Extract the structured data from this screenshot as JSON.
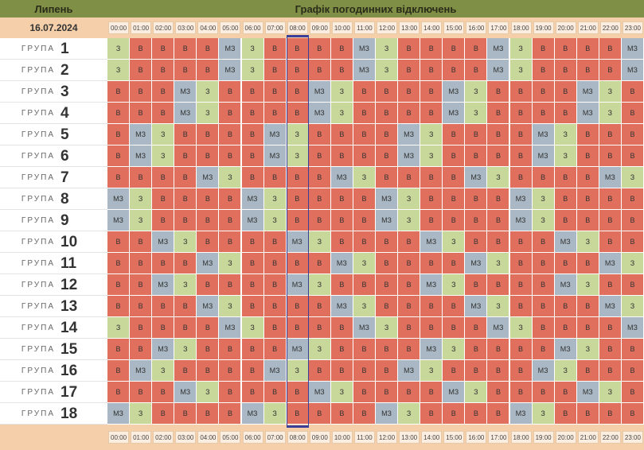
{
  "header": {
    "month": "Липень",
    "title": "Графік погодинних відключень",
    "date": "16.07.2024"
  },
  "hours": [
    "00:00",
    "01:00",
    "02:00",
    "03:00",
    "04:00",
    "05:00",
    "06:00",
    "07:00",
    "08:00",
    "09:00",
    "10:00",
    "11:00",
    "12:00",
    "13:00",
    "14:00",
    "15:00",
    "16:00",
    "17:00",
    "18:00",
    "19:00",
    "20:00",
    "21:00",
    "22:00",
    "23:00"
  ],
  "groups": [
    {
      "label": "ГРУПА",
      "number": "1",
      "cells": [
        "З",
        "В",
        "В",
        "В",
        "В",
        "МЗ",
        "З",
        "В",
        "В",
        "В",
        "В",
        "МЗ",
        "З",
        "В",
        "В",
        "В",
        "В",
        "МЗ",
        "З",
        "В",
        "В",
        "В",
        "В",
        "МЗ"
      ]
    },
    {
      "label": "ГРУПА",
      "number": "2",
      "cells": [
        "З",
        "В",
        "В",
        "В",
        "В",
        "МЗ",
        "З",
        "В",
        "В",
        "В",
        "В",
        "МЗ",
        "З",
        "В",
        "В",
        "В",
        "В",
        "МЗ",
        "З",
        "В",
        "В",
        "В",
        "В",
        "МЗ"
      ]
    },
    {
      "label": "ГРУПА",
      "number": "3",
      "cells": [
        "В",
        "В",
        "В",
        "МЗ",
        "З",
        "В",
        "В",
        "В",
        "В",
        "МЗ",
        "З",
        "В",
        "В",
        "В",
        "В",
        "МЗ",
        "З",
        "В",
        "В",
        "В",
        "В",
        "МЗ",
        "З",
        "В"
      ]
    },
    {
      "label": "ГРУПА",
      "number": "4",
      "cells": [
        "В",
        "В",
        "В",
        "МЗ",
        "З",
        "В",
        "В",
        "В",
        "В",
        "МЗ",
        "З",
        "В",
        "В",
        "В",
        "В",
        "МЗ",
        "З",
        "В",
        "В",
        "В",
        "В",
        "МЗ",
        "З",
        "В"
      ]
    },
    {
      "label": "ГРУПА",
      "number": "5",
      "cells": [
        "В",
        "МЗ",
        "З",
        "В",
        "В",
        "В",
        "В",
        "МЗ",
        "З",
        "В",
        "В",
        "В",
        "В",
        "МЗ",
        "З",
        "В",
        "В",
        "В",
        "В",
        "МЗ",
        "З",
        "В",
        "В",
        "В"
      ]
    },
    {
      "label": "ГРУПА",
      "number": "6",
      "cells": [
        "В",
        "МЗ",
        "З",
        "В",
        "В",
        "В",
        "В",
        "МЗ",
        "З",
        "В",
        "В",
        "В",
        "В",
        "МЗ",
        "З",
        "В",
        "В",
        "В",
        "В",
        "МЗ",
        "З",
        "В",
        "В",
        "В"
      ]
    },
    {
      "label": "ГРУПА",
      "number": "7",
      "cells": [
        "В",
        "В",
        "В",
        "В",
        "МЗ",
        "З",
        "В",
        "В",
        "В",
        "В",
        "МЗ",
        "З",
        "В",
        "В",
        "В",
        "В",
        "МЗ",
        "З",
        "В",
        "В",
        "В",
        "В",
        "МЗ",
        "З"
      ]
    },
    {
      "label": "ГРУПА",
      "number": "8",
      "cells": [
        "МЗ",
        "З",
        "В",
        "В",
        "В",
        "В",
        "МЗ",
        "З",
        "В",
        "В",
        "В",
        "В",
        "МЗ",
        "З",
        "В",
        "В",
        "В",
        "В",
        "МЗ",
        "З",
        "В",
        "В",
        "В",
        "В"
      ]
    },
    {
      "label": "ГРУПА",
      "number": "9",
      "cells": [
        "МЗ",
        "З",
        "В",
        "В",
        "В",
        "В",
        "МЗ",
        "З",
        "В",
        "В",
        "В",
        "В",
        "МЗ",
        "З",
        "В",
        "В",
        "В",
        "В",
        "МЗ",
        "З",
        "В",
        "В",
        "В",
        "В"
      ]
    },
    {
      "label": "ГРУПА",
      "number": "10",
      "cells": [
        "В",
        "В",
        "МЗ",
        "З",
        "В",
        "В",
        "В",
        "В",
        "МЗ",
        "З",
        "В",
        "В",
        "В",
        "В",
        "МЗ",
        "З",
        "В",
        "В",
        "В",
        "В",
        "МЗ",
        "З",
        "В",
        "В"
      ]
    },
    {
      "label": "ГРУПА",
      "number": "11",
      "cells": [
        "В",
        "В",
        "В",
        "В",
        "МЗ",
        "З",
        "В",
        "В",
        "В",
        "В",
        "МЗ",
        "З",
        "В",
        "В",
        "В",
        "В",
        "МЗ",
        "З",
        "В",
        "В",
        "В",
        "В",
        "МЗ",
        "З"
      ]
    },
    {
      "label": "ГРУПА",
      "number": "12",
      "cells": [
        "В",
        "В",
        "МЗ",
        "З",
        "В",
        "В",
        "В",
        "В",
        "МЗ",
        "З",
        "В",
        "В",
        "В",
        "В",
        "МЗ",
        "З",
        "В",
        "В",
        "В",
        "В",
        "МЗ",
        "З",
        "В",
        "В"
      ]
    },
    {
      "label": "ГРУПА",
      "number": "13",
      "cells": [
        "В",
        "В",
        "В",
        "В",
        "МЗ",
        "З",
        "В",
        "В",
        "В",
        "В",
        "МЗ",
        "З",
        "В",
        "В",
        "В",
        "В",
        "МЗ",
        "З",
        "В",
        "В",
        "В",
        "В",
        "МЗ",
        "З"
      ]
    },
    {
      "label": "ГРУПА",
      "number": "14",
      "cells": [
        "З",
        "В",
        "В",
        "В",
        "В",
        "МЗ",
        "З",
        "В",
        "В",
        "В",
        "В",
        "МЗ",
        "З",
        "В",
        "В",
        "В",
        "В",
        "МЗ",
        "З",
        "В",
        "В",
        "В",
        "В",
        "МЗ"
      ]
    },
    {
      "label": "ГРУПА",
      "number": "15",
      "cells": [
        "В",
        "В",
        "МЗ",
        "З",
        "В",
        "В",
        "В",
        "В",
        "МЗ",
        "З",
        "В",
        "В",
        "В",
        "В",
        "МЗ",
        "З",
        "В",
        "В",
        "В",
        "В",
        "МЗ",
        "З",
        "В",
        "В"
      ]
    },
    {
      "label": "ГРУПА",
      "number": "16",
      "cells": [
        "В",
        "МЗ",
        "З",
        "В",
        "В",
        "В",
        "В",
        "МЗ",
        "З",
        "В",
        "В",
        "В",
        "В",
        "МЗ",
        "З",
        "В",
        "В",
        "В",
        "В",
        "МЗ",
        "З",
        "В",
        "В",
        "В"
      ]
    },
    {
      "label": "ГРУПА",
      "number": "17",
      "cells": [
        "В",
        "В",
        "В",
        "МЗ",
        "З",
        "В",
        "В",
        "В",
        "В",
        "МЗ",
        "З",
        "В",
        "В",
        "В",
        "В",
        "МЗ",
        "З",
        "В",
        "В",
        "В",
        "В",
        "МЗ",
        "З",
        "В"
      ]
    },
    {
      "label": "ГРУПА",
      "number": "18",
      "cells": [
        "МЗ",
        "З",
        "В",
        "В",
        "В",
        "В",
        "МЗ",
        "З",
        "В",
        "В",
        "В",
        "В",
        "МЗ",
        "З",
        "В",
        "В",
        "В",
        "В",
        "МЗ",
        "З",
        "В",
        "В",
        "В",
        "В"
      ]
    }
  ]
}
